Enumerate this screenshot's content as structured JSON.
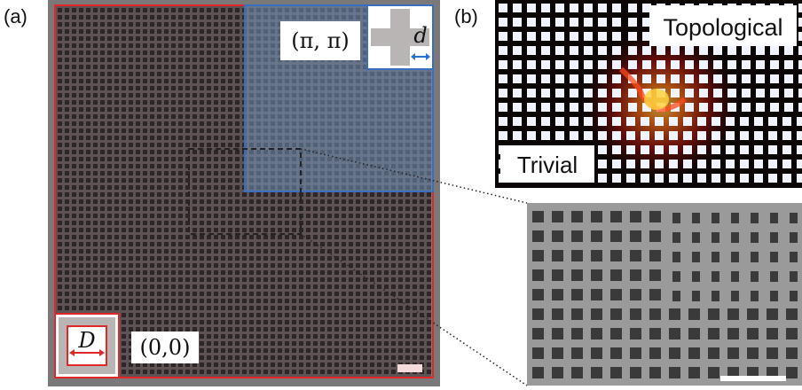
{
  "panels": {
    "a": {
      "label": "(a)",
      "topological_region_label": "(π, π)",
      "trivial_region_label": "(0,0)",
      "inset_top_dimension": "d",
      "inset_bottom_dimension": "D",
      "colors": {
        "trivial_border": "#e02828",
        "topological_border": "#3a6fc0",
        "topological_tint": "#6f8fb8",
        "lattice_background": "#5f5252",
        "hole": "#2c2628",
        "frame": "#7a7878",
        "zoom_box": "#222222",
        "scale_bar": "#f4dcdc",
        "inset_fill": "#b9b5b5"
      }
    },
    "b": {
      "label": "(b)",
      "topological_label": "Topological",
      "trivial_label": "Trivial",
      "colors": {
        "background": "#0a0606",
        "square": "#f1f4ff",
        "hotspot": "#ff8a1e",
        "glow": "#c01810"
      }
    },
    "sem": {
      "colors": {
        "background": "#9a9a9a",
        "hole": "#3a3a3a",
        "scale_bar": "#ffffff"
      }
    }
  }
}
